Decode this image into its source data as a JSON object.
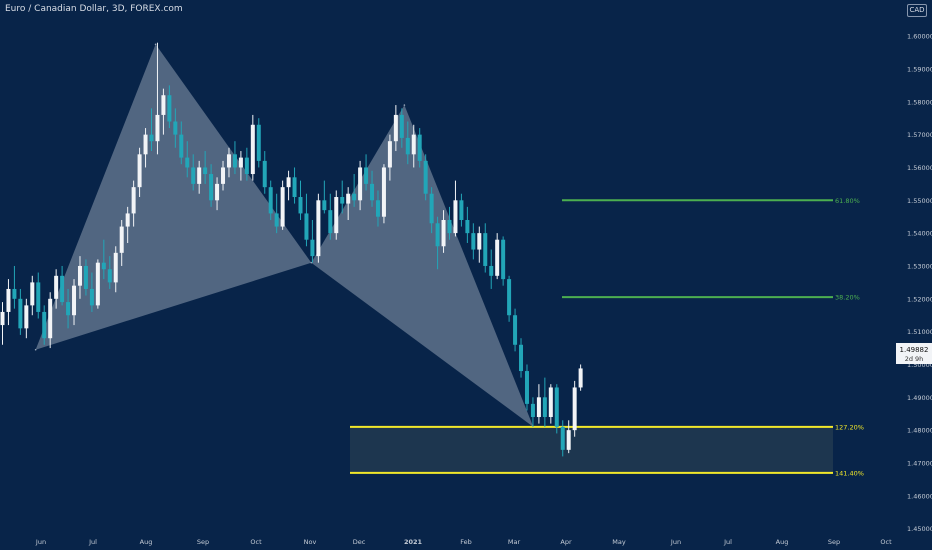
{
  "header": {
    "title": "Euro / Canadian Dollar, 3D, FOREX.com",
    "currency": "CAD"
  },
  "price_tag": {
    "value": "1.49882",
    "countdown": "2d 9h"
  },
  "colors": {
    "background": "#082449",
    "bull": "#f2f4f7",
    "bear": "#22a6b8",
    "harmonic_fill": "#9aa7ba",
    "fib_green": "#4caf50",
    "fib_yellow": "#f2e82a",
    "zone_fill": "#1d364f"
  },
  "chart_data": {
    "type": "candlestick",
    "y_axis": {
      "ylim": [
        1.4435,
        1.611
      ],
      "ticks": [
        "1.45000",
        "1.46000",
        "1.47000",
        "1.48000",
        "1.49000",
        "1.50000",
        "1.51000",
        "1.52000",
        "1.53000",
        "1.54000",
        "1.55000",
        "1.56000",
        "1.57000",
        "1.58000",
        "1.59000",
        "1.60000"
      ]
    },
    "x_axis": {
      "labels": [
        "Jun",
        "Jul",
        "Aug",
        "Sep",
        "Oct",
        "Nov",
        "Dec",
        "2021",
        "Feb",
        "Mar",
        "Apr",
        "May",
        "Jun",
        "Jul",
        "Aug",
        "Sep",
        "Oct"
      ]
    },
    "pattern_points": [
      {
        "date": "2020-05-29",
        "price": 1.5045
      },
      {
        "date": "2020-08-04",
        "price": 1.5975
      },
      {
        "date": "2020-10-30",
        "price": 1.531
      },
      {
        "date": "2020-12-21",
        "price": 1.579
      },
      {
        "date": "2021-03-03",
        "price": 1.481
      }
    ],
    "fib_levels": [
      {
        "label": "61.80%",
        "price": 1.55,
        "color": "green"
      },
      {
        "label": "38.20%",
        "price": 1.5205,
        "color": "green"
      },
      {
        "label": "127.20%",
        "price": 1.481,
        "color": "yellow"
      },
      {
        "label": "141.40%",
        "price": 1.467,
        "color": "yellow"
      }
    ],
    "candles": [
      [
        1.512,
        1.519,
        1.506,
        1.516
      ],
      [
        1.516,
        1.526,
        1.512,
        1.523
      ],
      [
        1.523,
        1.53,
        1.517,
        1.52
      ],
      [
        1.52,
        1.523,
        1.509,
        1.511
      ],
      [
        1.511,
        1.52,
        1.508,
        1.518
      ],
      [
        1.518,
        1.527,
        1.515,
        1.525
      ],
      [
        1.525,
        1.528,
        1.514,
        1.516
      ],
      [
        1.516,
        1.518,
        1.506,
        1.508
      ],
      [
        1.508,
        1.522,
        1.505,
        1.52
      ],
      [
        1.52,
        1.529,
        1.517,
        1.527
      ],
      [
        1.527,
        1.53,
        1.518,
        1.519
      ],
      [
        1.519,
        1.523,
        1.511,
        1.515
      ],
      [
        1.515,
        1.526,
        1.512,
        1.524
      ],
      [
        1.524,
        1.533,
        1.52,
        1.53
      ],
      [
        1.53,
        1.532,
        1.521,
        1.523
      ],
      [
        1.523,
        1.528,
        1.516,
        1.518
      ],
      [
        1.518,
        1.532,
        1.517,
        1.531
      ],
      [
        1.531,
        1.538,
        1.526,
        1.529
      ],
      [
        1.529,
        1.533,
        1.523,
        1.525
      ],
      [
        1.525,
        1.536,
        1.522,
        1.534
      ],
      [
        1.534,
        1.544,
        1.53,
        1.542
      ],
      [
        1.542,
        1.548,
        1.537,
        1.546
      ],
      [
        1.546,
        1.556,
        1.542,
        1.554
      ],
      [
        1.554,
        1.566,
        1.551,
        1.564
      ],
      [
        1.564,
        1.572,
        1.56,
        1.57
      ],
      [
        1.57,
        1.578,
        1.565,
        1.568
      ],
      [
        1.568,
        1.598,
        1.564,
        1.576
      ],
      [
        1.576,
        1.584,
        1.57,
        1.582
      ],
      [
        1.582,
        1.585,
        1.572,
        1.574
      ],
      [
        1.574,
        1.578,
        1.566,
        1.57
      ],
      [
        1.57,
        1.574,
        1.561,
        1.563
      ],
      [
        1.563,
        1.568,
        1.557,
        1.56
      ],
      [
        1.56,
        1.564,
        1.553,
        1.555
      ],
      [
        1.555,
        1.562,
        1.552,
        1.56
      ],
      [
        1.56,
        1.565,
        1.555,
        1.558
      ],
      [
        1.558,
        1.561,
        1.548,
        1.55
      ],
      [
        1.55,
        1.557,
        1.547,
        1.555
      ],
      [
        1.555,
        1.562,
        1.553,
        1.56
      ],
      [
        1.56,
        1.566,
        1.557,
        1.564
      ],
      [
        1.564,
        1.568,
        1.558,
        1.56
      ],
      [
        1.56,
        1.565,
        1.556,
        1.563
      ],
      [
        1.563,
        1.566,
        1.556,
        1.558
      ],
      [
        1.558,
        1.576,
        1.556,
        1.573
      ],
      [
        1.573,
        1.575,
        1.56,
        1.562
      ],
      [
        1.562,
        1.565,
        1.552,
        1.554
      ],
      [
        1.554,
        1.556,
        1.544,
        1.546
      ],
      [
        1.546,
        1.552,
        1.54,
        1.542
      ],
      [
        1.542,
        1.556,
        1.541,
        1.554
      ],
      [
        1.554,
        1.559,
        1.55,
        1.557
      ],
      [
        1.557,
        1.56,
        1.549,
        1.551
      ],
      [
        1.551,
        1.556,
        1.544,
        1.546
      ],
      [
        1.546,
        1.552,
        1.536,
        1.538
      ],
      [
        1.538,
        1.544,
        1.531,
        1.533
      ],
      [
        1.533,
        1.552,
        1.531,
        1.55
      ],
      [
        1.55,
        1.556,
        1.546,
        1.547
      ],
      [
        1.547,
        1.552,
        1.538,
        1.54
      ],
      [
        1.54,
        1.553,
        1.538,
        1.551
      ],
      [
        1.551,
        1.556,
        1.546,
        1.549
      ],
      [
        1.549,
        1.554,
        1.544,
        1.552
      ],
      [
        1.552,
        1.558,
        1.548,
        1.55
      ],
      [
        1.55,
        1.562,
        1.547,
        1.56
      ],
      [
        1.56,
        1.564,
        1.553,
        1.555
      ],
      [
        1.555,
        1.559,
        1.548,
        1.55
      ],
      [
        1.55,
        1.553,
        1.542,
        1.545
      ],
      [
        1.545,
        1.561,
        1.543,
        1.56
      ],
      [
        1.56,
        1.57,
        1.556,
        1.568
      ],
      [
        1.568,
        1.579,
        1.565,
        1.576
      ],
      [
        1.576,
        1.578,
        1.566,
        1.569
      ],
      [
        1.569,
        1.574,
        1.561,
        1.564
      ],
      [
        1.564,
        1.573,
        1.56,
        1.57
      ],
      [
        1.57,
        1.572,
        1.56,
        1.562
      ],
      [
        1.562,
        1.564,
        1.55,
        1.552
      ],
      [
        1.552,
        1.554,
        1.54,
        1.543
      ],
      [
        1.543,
        1.545,
        1.529,
        1.536
      ],
      [
        1.536,
        1.547,
        1.534,
        1.544
      ],
      [
        1.544,
        1.548,
        1.538,
        1.54
      ],
      [
        1.54,
        1.556,
        1.539,
        1.55
      ],
      [
        1.55,
        1.552,
        1.542,
        1.544
      ],
      [
        1.544,
        1.548,
        1.537,
        1.54
      ],
      [
        1.54,
        1.543,
        1.532,
        1.535
      ],
      [
        1.535,
        1.542,
        1.531,
        1.54
      ],
      [
        1.54,
        1.543,
        1.528,
        1.53
      ],
      [
        1.53,
        1.535,
        1.523,
        1.527
      ],
      [
        1.527,
        1.54,
        1.526,
        1.538
      ],
      [
        1.538,
        1.539,
        1.524,
        1.526
      ],
      [
        1.526,
        1.527,
        1.513,
        1.515
      ],
      [
        1.515,
        1.517,
        1.504,
        1.506
      ],
      [
        1.506,
        1.508,
        1.496,
        1.498
      ],
      [
        1.498,
        1.5,
        1.486,
        1.488
      ],
      [
        1.488,
        1.49,
        1.481,
        1.484
      ],
      [
        1.484,
        1.494,
        1.482,
        1.49
      ],
      [
        1.49,
        1.496,
        1.481,
        1.484
      ],
      [
        1.484,
        1.494,
        1.482,
        1.493
      ],
      [
        1.493,
        1.494,
        1.479,
        1.481
      ],
      [
        1.481,
        1.483,
        1.472,
        1.474
      ],
      [
        1.474,
        1.483,
        1.473,
        1.48
      ],
      [
        1.48,
        1.495,
        1.478,
        1.493
      ],
      [
        1.493,
        1.5,
        1.492,
        1.4988
      ]
    ]
  }
}
